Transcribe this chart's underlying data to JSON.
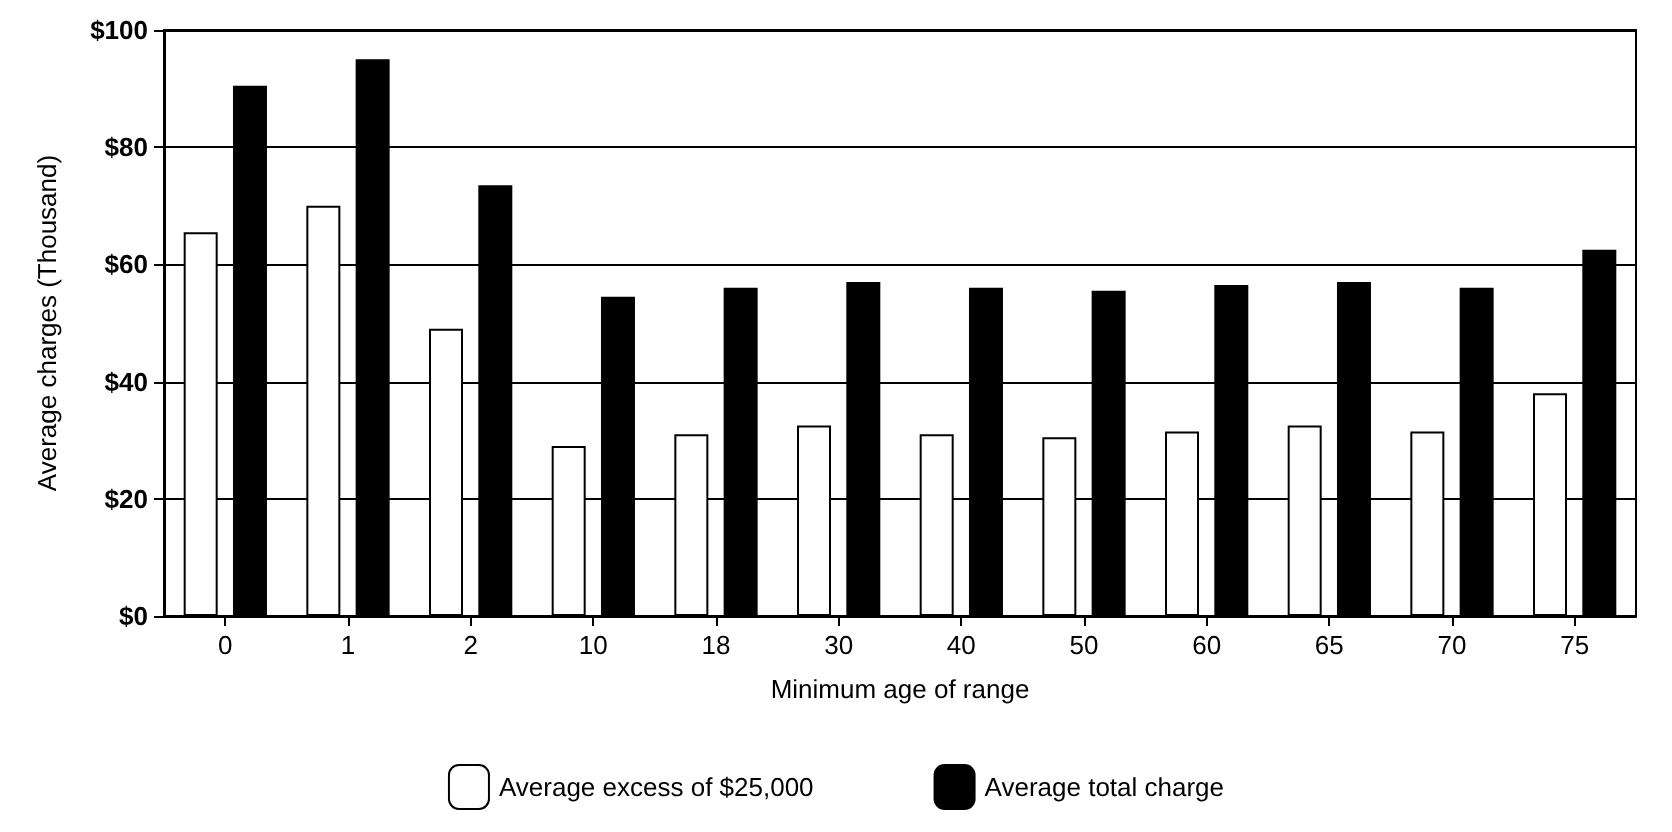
{
  "chart_data": {
    "type": "bar",
    "xlabel": "Minimum age of range",
    "ylabel": "Average charges (Thousand)",
    "categories": [
      "0",
      "1",
      "2",
      "10",
      "18",
      "30",
      "40",
      "50",
      "60",
      "65",
      "70",
      "75"
    ],
    "series": [
      {
        "name": "Average excess of $25,000",
        "color": "#ffffff",
        "values": [
          65.5,
          70,
          49,
          29,
          31,
          32.5,
          31,
          30.5,
          31.5,
          32.5,
          31.5,
          38
        ]
      },
      {
        "name": "Average total charge",
        "color": "#000000",
        "values": [
          90.5,
          95,
          73.5,
          54.5,
          56,
          57,
          56,
          55.5,
          56.5,
          57,
          56,
          62.5
        ]
      }
    ],
    "ylim": [
      0,
      100
    ],
    "yticks": [
      {
        "value": 0,
        "label": "$0"
      },
      {
        "value": 20,
        "label": "$20"
      },
      {
        "value": 40,
        "label": "$40"
      },
      {
        "value": 60,
        "label": "$60"
      },
      {
        "value": 80,
        "label": "$80"
      },
      {
        "value": 100,
        "label": "$100"
      }
    ],
    "grid": "y",
    "legend": "bottom"
  }
}
